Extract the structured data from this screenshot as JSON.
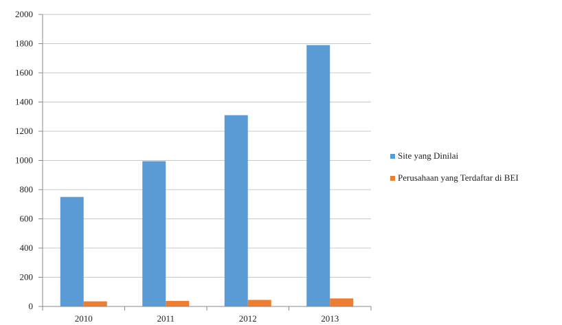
{
  "chart_data": {
    "type": "bar",
    "categories": [
      "2010",
      "2011",
      "2012",
      "2013"
    ],
    "series": [
      {
        "name": "Site yang Dinilai",
        "color": "#5B9BD5",
        "values": [
          750,
          995,
          1310,
          1790
        ]
      },
      {
        "name": "Perusahaan yang Terdaftar di BEI",
        "color": "#ED7D31",
        "values": [
          35,
          38,
          45,
          55
        ]
      }
    ],
    "ylim": [
      0,
      2000
    ],
    "yticks": [
      "0",
      "200",
      "400",
      "600",
      "800",
      "1000",
      "1200",
      "1400",
      "1600",
      "1800",
      "2000"
    ],
    "grid": true,
    "legend_position": "right"
  }
}
